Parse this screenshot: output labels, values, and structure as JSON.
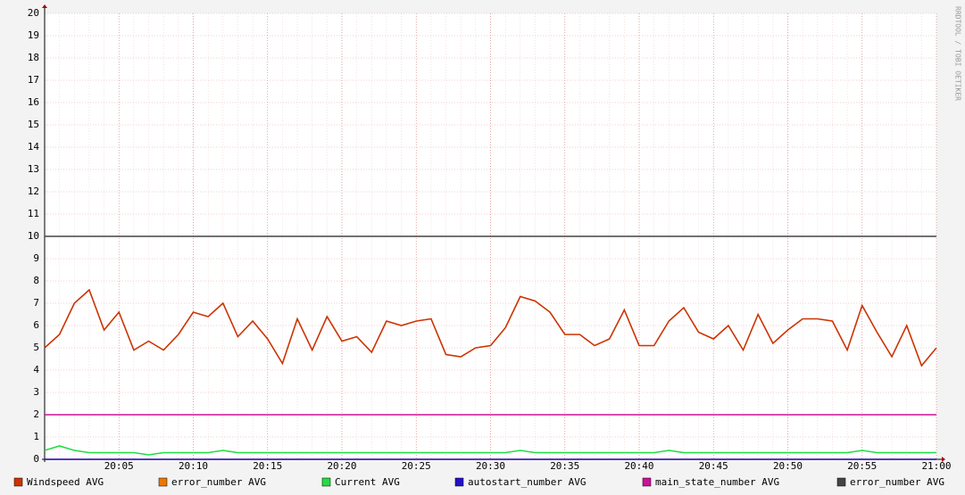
{
  "chart_data": {
    "type": "line",
    "side_label": "RRDTOOL / TOBI OETIKER",
    "x": [
      "20:00",
      "20:01",
      "20:02",
      "20:03",
      "20:04",
      "20:05",
      "20:06",
      "20:07",
      "20:08",
      "20:09",
      "20:10",
      "20:11",
      "20:12",
      "20:13",
      "20:14",
      "20:15",
      "20:16",
      "20:17",
      "20:18",
      "20:19",
      "20:20",
      "20:21",
      "20:22",
      "20:23",
      "20:24",
      "20:25",
      "20:26",
      "20:27",
      "20:28",
      "20:29",
      "20:30",
      "20:31",
      "20:32",
      "20:33",
      "20:34",
      "20:35",
      "20:36",
      "20:37",
      "20:38",
      "20:39",
      "20:40",
      "20:41",
      "20:42",
      "20:43",
      "20:44",
      "20:45",
      "20:46",
      "20:47",
      "20:48",
      "20:49",
      "20:50",
      "20:51",
      "20:52",
      "20:53",
      "20:54",
      "20:55",
      "20:56",
      "20:57",
      "20:58",
      "20:59",
      "21:00"
    ],
    "xticks": [
      "20:05",
      "20:10",
      "20:15",
      "20:20",
      "20:25",
      "20:30",
      "20:35",
      "20:40",
      "20:45",
      "20:50",
      "20:55",
      "21:00"
    ],
    "ylim": [
      0,
      20
    ],
    "yticks": [
      0,
      1,
      2,
      3,
      4,
      5,
      6,
      7,
      8,
      9,
      10,
      11,
      12,
      13,
      14,
      15,
      16,
      17,
      18,
      19,
      20
    ],
    "grid": true,
    "series": [
      {
        "name": "Windspeed AVG",
        "color": "#cc3300",
        "values": [
          5.0,
          5.6,
          7.0,
          7.6,
          5.8,
          6.6,
          4.9,
          5.3,
          4.9,
          5.6,
          6.6,
          6.4,
          7.0,
          5.5,
          6.2,
          5.4,
          4.3,
          6.3,
          4.9,
          6.4,
          5.3,
          5.5,
          4.8,
          6.2,
          6.0,
          6.2,
          6.3,
          4.7,
          4.6,
          5.0,
          5.1,
          5.9,
          7.3,
          7.1,
          6.6,
          5.6,
          5.6,
          5.1,
          5.4,
          6.7,
          5.1,
          5.1,
          6.2,
          6.8,
          5.7,
          5.4,
          6.0,
          4.9,
          6.5,
          5.2,
          5.8,
          6.3,
          6.3,
          6.2,
          4.9,
          6.9,
          5.7,
          4.6,
          6.0,
          4.2,
          5.0
        ]
      },
      {
        "name": "error_number AVG",
        "color": "#ee7700",
        "values": [
          0,
          0,
          0,
          0,
          0,
          0,
          0,
          0,
          0,
          0,
          0,
          0,
          0,
          0,
          0,
          0,
          0,
          0,
          0,
          0,
          0,
          0,
          0,
          0,
          0,
          0,
          0,
          0,
          0,
          0,
          0,
          0,
          0,
          0,
          0,
          0,
          0,
          0,
          0,
          0,
          0,
          0,
          0,
          0,
          0,
          0,
          0,
          0,
          0,
          0,
          0,
          0,
          0,
          0,
          0,
          0,
          0,
          0,
          0,
          0,
          0
        ]
      },
      {
        "name": "Current AVG",
        "color": "#22dd44",
        "values": [
          0.4,
          0.6,
          0.4,
          0.3,
          0.3,
          0.3,
          0.3,
          0.2,
          0.3,
          0.3,
          0.3,
          0.3,
          0.4,
          0.3,
          0.3,
          0.3,
          0.3,
          0.3,
          0.3,
          0.3,
          0.3,
          0.3,
          0.3,
          0.3,
          0.3,
          0.3,
          0.3,
          0.3,
          0.3,
          0.3,
          0.3,
          0.3,
          0.4,
          0.3,
          0.3,
          0.3,
          0.3,
          0.3,
          0.3,
          0.3,
          0.3,
          0.3,
          0.4,
          0.3,
          0.3,
          0.3,
          0.3,
          0.3,
          0.3,
          0.3,
          0.3,
          0.3,
          0.3,
          0.3,
          0.3,
          0.4,
          0.3,
          0.3,
          0.3,
          0.3,
          0.3
        ]
      },
      {
        "name": "autostart_number AVG",
        "color": "#2211cc",
        "values": [
          0,
          0,
          0,
          0,
          0,
          0,
          0,
          0,
          0,
          0,
          0,
          0,
          0,
          0,
          0,
          0,
          0,
          0,
          0,
          0,
          0,
          0,
          0,
          0,
          0,
          0,
          0,
          0,
          0,
          0,
          0,
          0,
          0,
          0,
          0,
          0,
          0,
          0,
          0,
          0,
          0,
          0,
          0,
          0,
          0,
          0,
          0,
          0,
          0,
          0,
          0,
          0,
          0,
          0,
          0,
          0,
          0,
          0,
          0,
          0,
          0
        ]
      },
      {
        "name": "main_state_number AVG",
        "color": "#cc1199",
        "values": [
          2,
          2,
          2,
          2,
          2,
          2,
          2,
          2,
          2,
          2,
          2,
          2,
          2,
          2,
          2,
          2,
          2,
          2,
          2,
          2,
          2,
          2,
          2,
          2,
          2,
          2,
          2,
          2,
          2,
          2,
          2,
          2,
          2,
          2,
          2,
          2,
          2,
          2,
          2,
          2,
          2,
          2,
          2,
          2,
          2,
          2,
          2,
          2,
          2,
          2,
          2,
          2,
          2,
          2,
          2,
          2,
          2,
          2,
          2,
          2,
          2
        ]
      },
      {
        "name": "error_number AVG",
        "color": "#444444",
        "values": [
          10,
          10,
          10,
          10,
          10,
          10,
          10,
          10,
          10,
          10,
          10,
          10,
          10,
          10,
          10,
          10,
          10,
          10,
          10,
          10,
          10,
          10,
          10,
          10,
          10,
          10,
          10,
          10,
          10,
          10,
          10,
          10,
          10,
          10,
          10,
          10,
          10,
          10,
          10,
          10,
          10,
          10,
          10,
          10,
          10,
          10,
          10,
          10,
          10,
          10,
          10,
          10,
          10,
          10,
          10,
          10,
          10,
          10,
          10,
          10,
          10
        ]
      }
    ]
  }
}
